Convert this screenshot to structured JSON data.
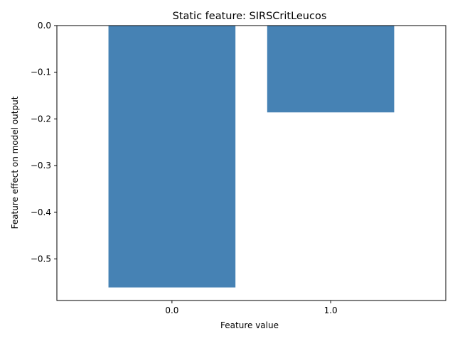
{
  "chart_data": {
    "type": "bar",
    "title": "Static feature: SIRSCritLeucos",
    "xlabel": "Feature value",
    "ylabel": "Feature effect on model output",
    "categories": [
      "0.0",
      "1.0"
    ],
    "values": [
      -0.561,
      -0.186
    ],
    "ylim": [
      -0.589,
      0.0
    ],
    "yticks": [
      0.0,
      -0.1,
      -0.2,
      -0.3,
      -0.4,
      -0.5
    ],
    "ytick_labels": [
      "0.0",
      "−0.1",
      "−0.2",
      "−0.3",
      "−0.4",
      "−0.5"
    ],
    "bar_color": "#4682b4",
    "grid": false,
    "legend": "none"
  }
}
